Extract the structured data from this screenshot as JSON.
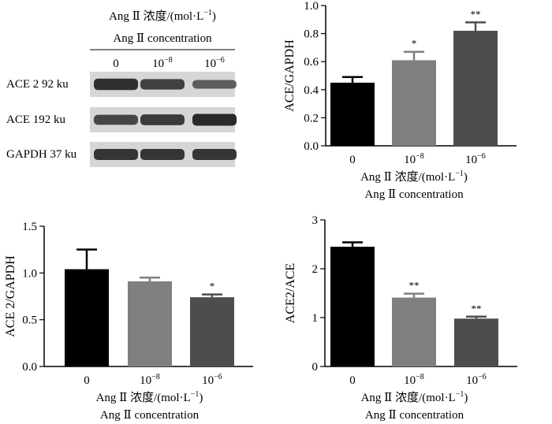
{
  "colors": {
    "bar0": "#000000",
    "bar1": "#7f7f7f",
    "bar2": "#4d4d4d",
    "axis": "#000000",
    "blot_bg": "#d6d6d6",
    "band": "#2a2a2a"
  },
  "blot": {
    "header_line1": "Ang Ⅱ 浓度/(mol·L",
    "header_line1_sup": "−1",
    "header_line1_end": ")",
    "header_line2": "Ang Ⅱ concentration",
    "lanes": [
      {
        "base": "0",
        "exp": ""
      },
      {
        "base": "10",
        "exp": "−8"
      },
      {
        "base": "10",
        "exp": "−6"
      }
    ],
    "rows": [
      {
        "label": "ACE 2 92 ku",
        "intensity": [
          0.95,
          0.8,
          0.55
        ]
      },
      {
        "label": "ACE 192 ku",
        "intensity": [
          0.75,
          0.85,
          1.0
        ]
      },
      {
        "label": "GAPDH 37 ku",
        "intensity": [
          0.9,
          0.9,
          0.9
        ]
      }
    ]
  },
  "chart_data": [
    {
      "type": "bar",
      "ylabel": "ACE/GAPDH",
      "xlabel_line1": "Ang Ⅱ 浓度/(mol·L",
      "xlabel_line1_sup": "−1",
      "xlabel_line1_end": ")",
      "xlabel_line2": "Ang Ⅱ concentration",
      "categories": [
        {
          "base": "0",
          "exp": ""
        },
        {
          "base": "10",
          "exp": "−8"
        },
        {
          "base": "10",
          "exp": "−6"
        }
      ],
      "values": [
        0.45,
        0.61,
        0.82
      ],
      "errors": [
        0.04,
        0.06,
        0.06
      ],
      "significance": [
        "",
        "*",
        "**"
      ],
      "ylim": [
        0,
        1.0
      ],
      "yticks": [
        "0.0",
        "0.2",
        "0.4",
        "0.6",
        "0.8",
        "1.0"
      ]
    },
    {
      "type": "bar",
      "ylabel": "ACE 2/GAPDH",
      "xlabel_line1": "Ang Ⅱ 浓度/(mol·L",
      "xlabel_line1_sup": "−1",
      "xlabel_line1_end": ")",
      "xlabel_line2": "Ang Ⅱ concentration",
      "categories": [
        {
          "base": "0",
          "exp": ""
        },
        {
          "base": "10",
          "exp": "−8"
        },
        {
          "base": "10",
          "exp": "−6"
        }
      ],
      "values": [
        1.04,
        0.91,
        0.74
      ],
      "errors": [
        0.21,
        0.04,
        0.03
      ],
      "significance": [
        "",
        "",
        "*"
      ],
      "ylim": [
        0,
        1.5
      ],
      "yticks": [
        "0.0",
        "0.5",
        "1.0",
        "1.5"
      ]
    },
    {
      "type": "bar",
      "ylabel": "ACE2/ACE",
      "xlabel_line1": "Ang Ⅱ 浓度/(mol·L",
      "xlabel_line1_sup": "−1",
      "xlabel_line1_end": ")",
      "xlabel_line2": "Ang Ⅱ concentration",
      "categories": [
        {
          "base": "0",
          "exp": ""
        },
        {
          "base": "10",
          "exp": "−8"
        },
        {
          "base": "10",
          "exp": "−6"
        }
      ],
      "values": [
        2.45,
        1.41,
        0.98
      ],
      "errors": [
        0.09,
        0.08,
        0.04
      ],
      "significance": [
        "",
        "**",
        "**"
      ],
      "ylim": [
        0,
        3
      ],
      "yticks": [
        "0",
        "1",
        "2",
        "3"
      ]
    }
  ]
}
